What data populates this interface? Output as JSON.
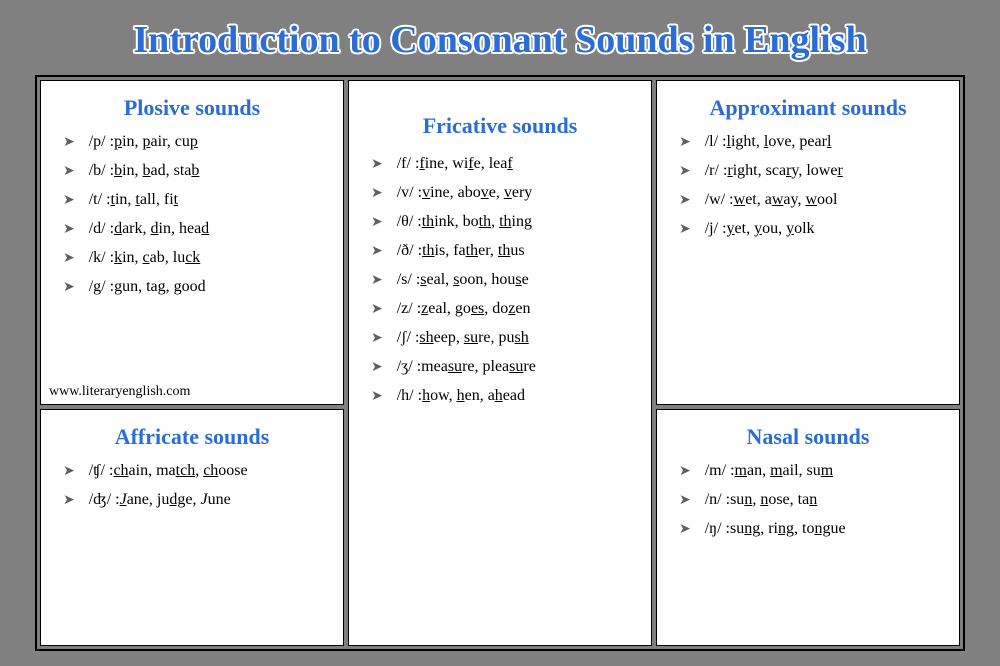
{
  "title": "Introduction to Consonant Sounds in English",
  "footer": "www.literaryenglish.com",
  "colors": {
    "heading": "#2a6dd4",
    "background": "#808080",
    "card_bg": "#ffffff",
    "border": "#000000",
    "bullet": "#606060"
  },
  "typography": {
    "title_fontsize": 38,
    "card_title_fontsize": 22,
    "body_fontsize": 16,
    "font_family": "Times New Roman"
  },
  "layout": {
    "columns": 3,
    "col2_rowspan": 2
  },
  "bullet_glyph": "➤",
  "cards": [
    {
      "key": "plosive",
      "title": "Plosive sounds",
      "position": "col1-top",
      "entries": [
        {
          "phoneme": "/p/",
          "words_html": "<span class='u'>p</span>in, <span class='u'>p</span>air, cu<span class='u'>p</span>"
        },
        {
          "phoneme": "/b/",
          "words_html": "<span class='u'>b</span>in, <span class='u'>b</span>ad, sta<span class='u'>b</span>"
        },
        {
          "phoneme": "/t/",
          "words_html": "<span class='u'>t</span>in, <span class='u'>t</span>all, fi<span class='u'>t</span>"
        },
        {
          "phoneme": "/d/",
          "words_html": "<span class='u'>d</span>ark, <span class='u'>d</span>in, hea<span class='u'>d</span>"
        },
        {
          "phoneme": "/k/",
          "words_html": "<span class='u'>k</span>in, <span class='u'>c</span>ab, lu<span class='u'>ck</span>"
        },
        {
          "phoneme": "/g/",
          "words_html": "<span class='u'>g</span>un, ta<span class='u'>g</span>, <span class='u'>g</span>ood"
        }
      ]
    },
    {
      "key": "affricate",
      "title": "Affricate sounds",
      "position": "col1-bottom",
      "entries": [
        {
          "phoneme": "/ʧ/",
          "words_html": "<span class='u'>ch</span>ain, ma<span class='u'>tch</span>, <span class='u'>ch</span>oose"
        },
        {
          "phoneme": "/ʤ/",
          "words_html": "<span class='i u'>J</span>ane, <span class='u'>j</span>u<span class='u'>dg</span>e, <span class='i'>J</span>une"
        }
      ]
    },
    {
      "key": "fricative",
      "title": "Fricative sounds",
      "position": "col2",
      "entries": [
        {
          "phoneme": "/f/",
          "words_html": "<span class='u'>f</span>ine, wi<span class='u'>f</span>e, lea<span class='u'>f</span>"
        },
        {
          "phoneme": "/v/",
          "words_html": "<span class='u'>v</span>ine, abo<span class='u'>v</span>e, <span class='u'>v</span>ery"
        },
        {
          "phoneme": "/θ/",
          "words_html": "<span class='u'>th</span>ink, bo<span class='u'>th</span>, <span class='u'>th</span>ing"
        },
        {
          "phoneme": "/ð/",
          "words_html": "<span class='u'>th</span>is, fa<span class='u'>th</span>er, <span class='u'>th</span>us"
        },
        {
          "phoneme": "/s/",
          "words_html": "<span class='u'>s</span>eal, <span class='u'>s</span>oon, hou<span class='u'>s</span>e"
        },
        {
          "phoneme": "/z/",
          "words_html": "<span class='u'>z</span>eal, go<span class='u'>es</span>, do<span class='u'>z</span>en"
        },
        {
          "phoneme": "/ʃ/",
          "words_html": "<span class='u'>sh</span>eep, <span class='u'>su</span>re, pu<span class='u'>sh</span>"
        },
        {
          "phoneme": "/ʒ/",
          "words_html": "mea<span class='u'>su</span>re, plea<span class='u'>su</span>re"
        },
        {
          "phoneme": "/h/",
          "words_html": "<span class='u'>h</span>ow, <span class='u'>h</span>en, a<span class='u'>h</span>ead"
        }
      ]
    },
    {
      "key": "approximant",
      "title": "Approximant sounds",
      "position": "col3-top",
      "entries": [
        {
          "phoneme": "/l/",
          "words_html": "<span class='u'>l</span>ight, <span class='u'>l</span>ove, pear<span class='u'>l</span>"
        },
        {
          "phoneme": "/r/",
          "words_html": "<span class='u'>r</span>ight, sca<span class='u'>r</span>y, lowe<span class='u'>r</span>"
        },
        {
          "phoneme": "/w/",
          "words_html": "<span class='u'>w</span>et, a<span class='u'>w</span>ay, <span class='u'>w</span>ool"
        },
        {
          "phoneme": "/j/",
          "words_html": "<span class='u'>y</span>et, <span class='u'>y</span>ou, <span class='u'>y</span>olk"
        }
      ]
    },
    {
      "key": "nasal",
      "title": "Nasal sounds",
      "position": "col3-bottom",
      "entries": [
        {
          "phoneme": "/m/",
          "words_html": "<span class='u'>m</span>an, <span class='u'>m</span>ail, su<span class='u'>m</span>"
        },
        {
          "phoneme": "/n/",
          "words_html": "su<span class='u'>n</span>, <span class='u'>n</span>ose, ta<span class='u'>n</span>"
        },
        {
          "phoneme": "/ŋ/",
          "words_html": "su<span class='u'>ng</span>, ri<span class='u'>ng</span>, to<span class='u'>ng</span>ue"
        }
      ]
    }
  ]
}
